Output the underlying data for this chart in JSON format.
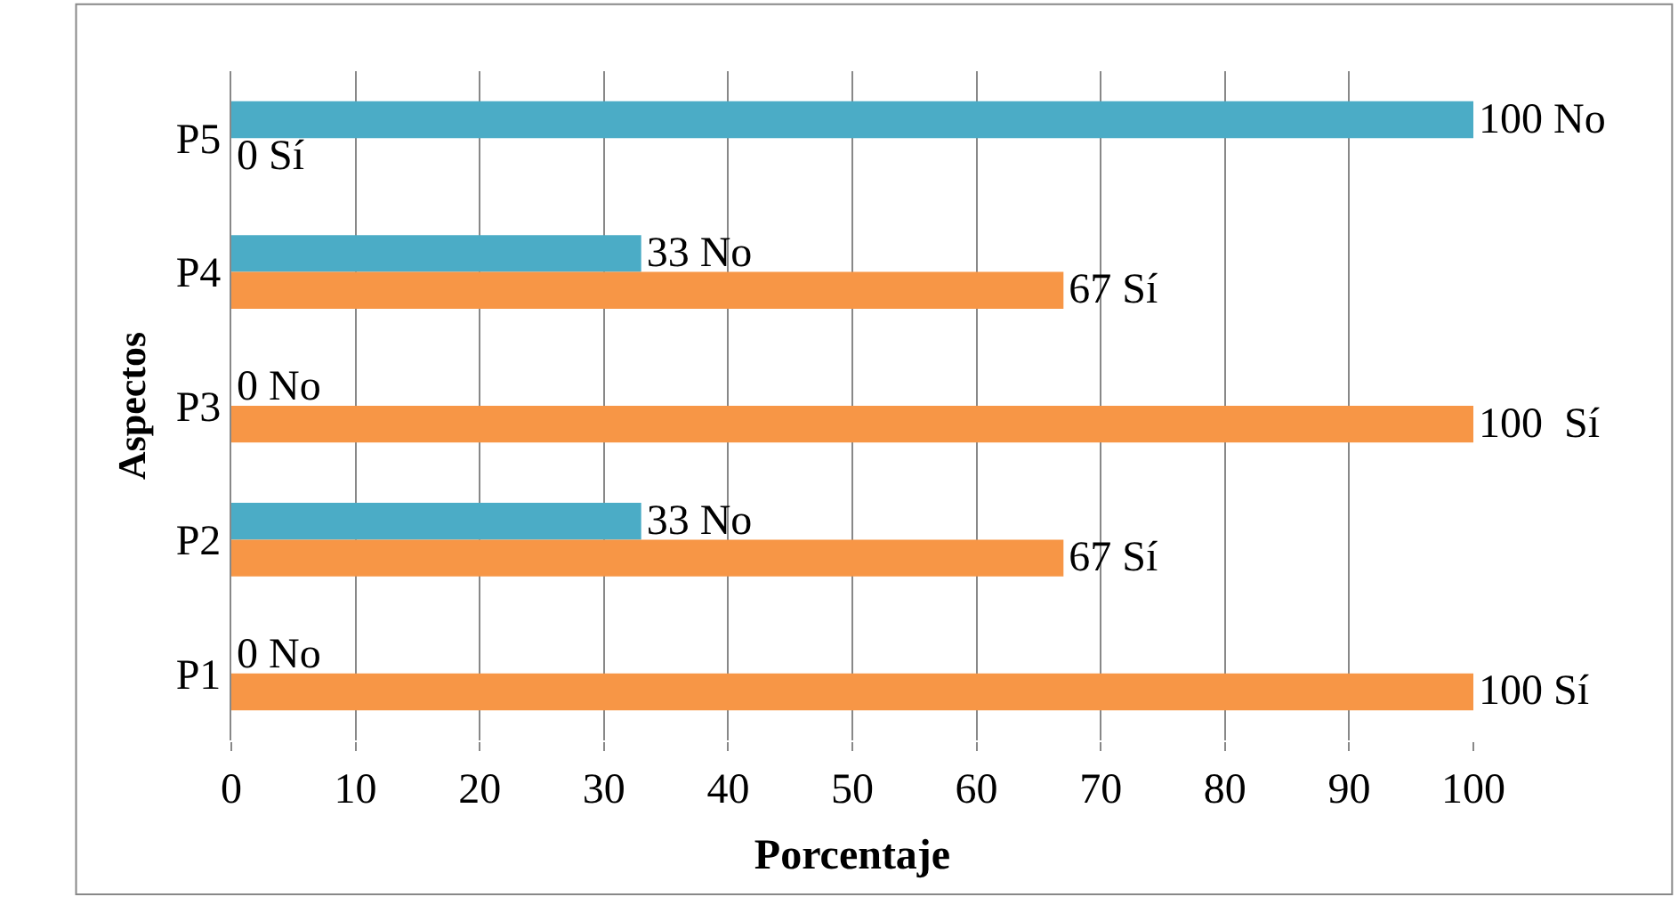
{
  "chart_data": {
    "type": "bar",
    "orientation": "horizontal",
    "xlabel": "Porcentaje",
    "ylabel": "Aspectos",
    "categories": [
      "P5",
      "P4",
      "P3",
      "P2",
      "P1"
    ],
    "series": [
      {
        "color": "#4bacc6",
        "values": [
          100,
          33,
          0,
          33,
          0
        ],
        "value_labels": [
          "100 No",
          "33 No",
          "0 No",
          "33 No",
          "0 No"
        ]
      },
      {
        "color": "#f79646",
        "values": [
          0,
          67,
          100,
          67,
          100
        ],
        "value_labels": [
          "0 Sí",
          "67 Sí",
          "100  Sí",
          "67 Sí",
          "100 Sí"
        ]
      }
    ],
    "xlim": [
      0,
      100
    ],
    "xticks": [
      0,
      10,
      20,
      30,
      40,
      50,
      60,
      70,
      80,
      90,
      100
    ],
    "grid": "x",
    "legend": false
  }
}
